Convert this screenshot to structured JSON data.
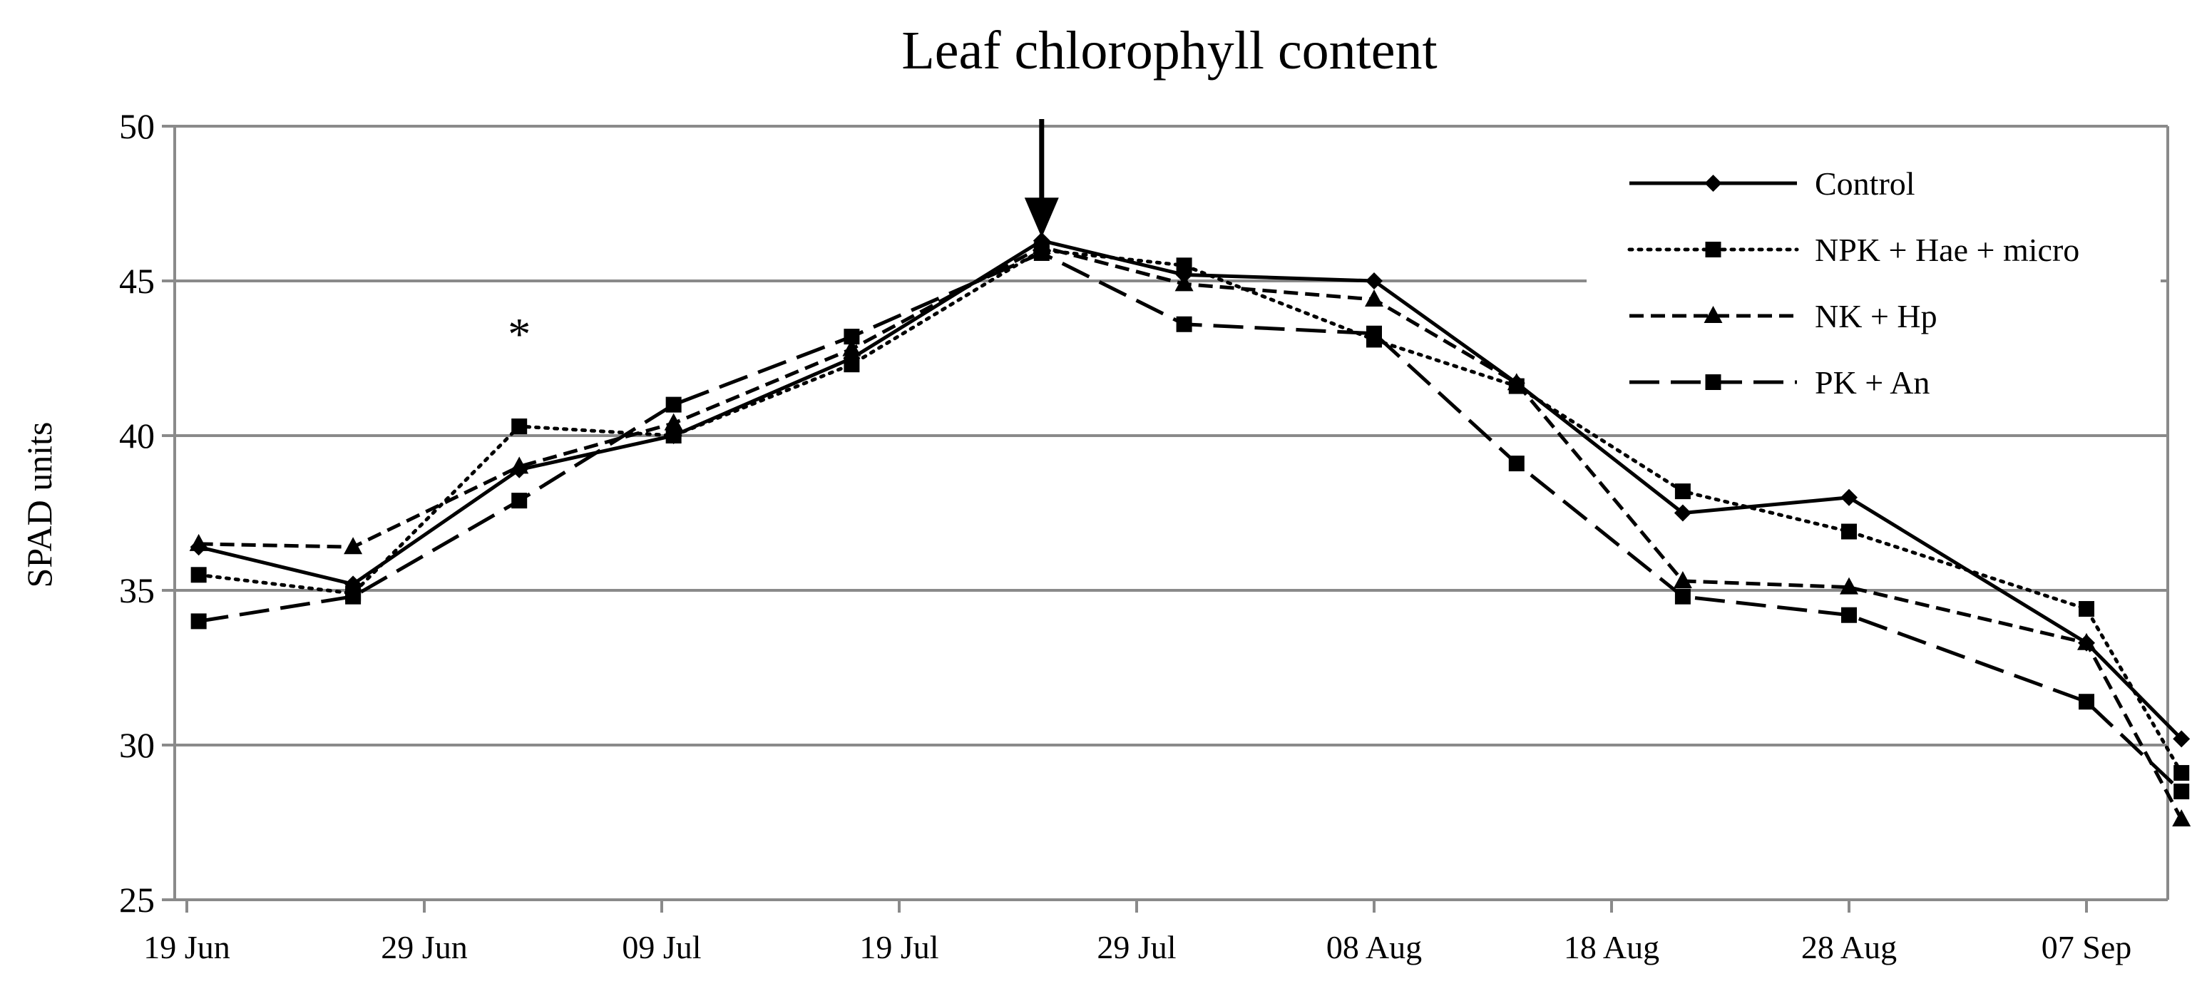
{
  "chart_data": {
    "type": "line",
    "title": "Leaf chlorophyll content",
    "xlabel": "",
    "ylabel": "SPAD units",
    "ylim": [
      25,
      50
    ],
    "yticks": [
      25,
      30,
      35,
      40,
      45,
      50
    ],
    "xlim": [
      0,
      85
    ],
    "xticks": [
      {
        "day": 0,
        "label": "19 Jun"
      },
      {
        "day": 10,
        "label": "29 Jun"
      },
      {
        "day": 20,
        "label": "09 Jul"
      },
      {
        "day": 30,
        "label": "19 Jul"
      },
      {
        "day": 40,
        "label": "29 Jul"
      },
      {
        "day": 50,
        "label": "08 Aug"
      },
      {
        "day": 60,
        "label": "18 Aug"
      },
      {
        "day": 70,
        "label": "28 Aug"
      },
      {
        "day": 80,
        "label": "07 Sep"
      }
    ],
    "grid": true,
    "legend_position": "top-right",
    "x": [
      0.5,
      7,
      14,
      20.5,
      28,
      36,
      42,
      50,
      56,
      63,
      70,
      80,
      84
    ],
    "series": [
      {
        "name": "Control",
        "marker": "diamond",
        "dash": "solid",
        "values": [
          36.4,
          35.2,
          38.9,
          40.0,
          42.5,
          46.3,
          45.2,
          45.0,
          41.7,
          37.5,
          38.0,
          33.3,
          30.2
        ]
      },
      {
        "name": "NPK + Hae + micro",
        "marker": "square",
        "dash": "dotted",
        "values": [
          35.5,
          34.9,
          40.3,
          40.0,
          42.3,
          46.0,
          45.5,
          43.1,
          41.6,
          38.2,
          36.9,
          34.4,
          29.1
        ]
      },
      {
        "name": "NK + Hp",
        "marker": "triangle",
        "dash": "short-dash",
        "values": [
          36.5,
          36.4,
          39.0,
          40.4,
          42.8,
          46.1,
          44.9,
          44.4,
          41.7,
          35.3,
          35.1,
          33.3,
          27.6
        ]
      },
      {
        "name": "PK + An",
        "marker": "square",
        "dash": "long-dash",
        "values": [
          34.0,
          34.8,
          37.9,
          41.0,
          43.2,
          45.9,
          43.6,
          43.3,
          39.1,
          34.8,
          34.2,
          31.4,
          28.5
        ]
      }
    ],
    "annotations": [
      {
        "type": "text",
        "text": "*",
        "day": 14,
        "value": 43.2
      },
      {
        "type": "arrow",
        "day": 36,
        "from_value": 50,
        "to_value": 46.4
      }
    ]
  }
}
